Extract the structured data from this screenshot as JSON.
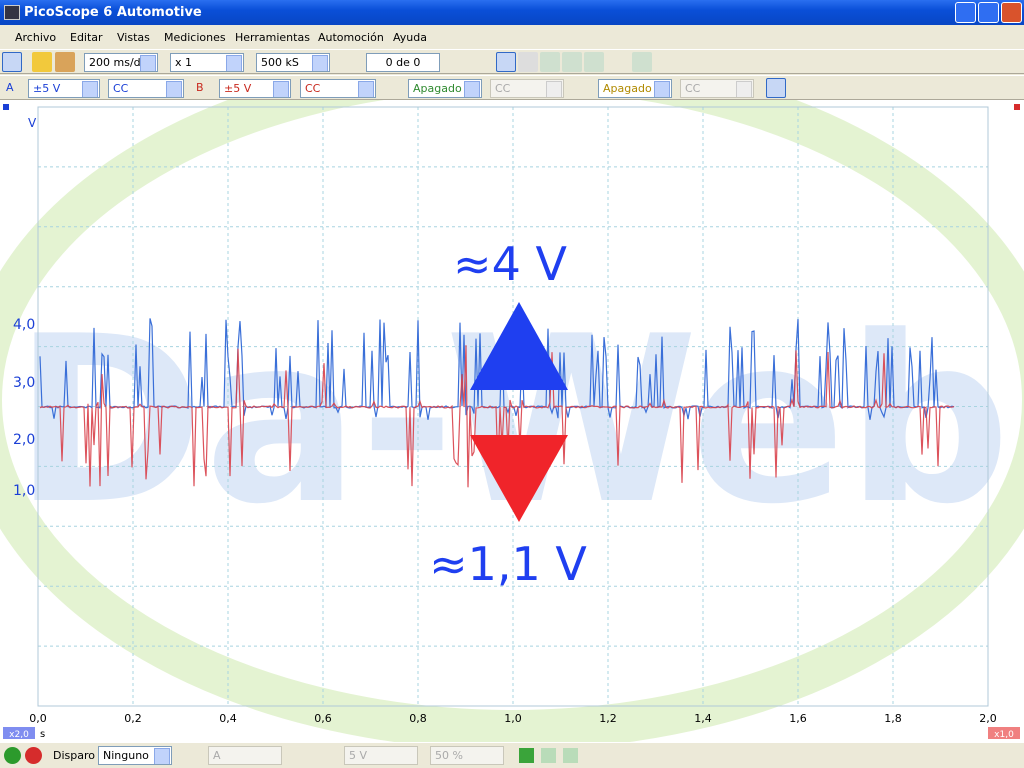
{
  "window": {
    "title": "PicoScope 6 Automotive"
  },
  "menu": [
    "Archivo",
    "Editar",
    "Vistas",
    "Mediciones",
    "Herramientas",
    "Automoción",
    "Ayuda"
  ],
  "toolbar": {
    "timebase": "200 ms/div",
    "zoom": "x 1",
    "samples": "500 kS",
    "buffer": "0 de 0"
  },
  "channels": [
    {
      "name": "A",
      "range": "±5 V",
      "coupling": "CC"
    },
    {
      "name": "B",
      "range": "±5 V",
      "coupling": "CC"
    },
    {
      "state": "Apagado",
      "coupling": "CC"
    },
    {
      "state": "Apagado",
      "coupling": "CC"
    }
  ],
  "plot": {
    "y_unit": "V",
    "y_labels": [
      "4,0",
      "3,0",
      "2,0",
      "1,0"
    ],
    "x_labels": [
      "0,0",
      "0,2",
      "0,4",
      "0,6",
      "0,8",
      "1,0",
      "1,2",
      "1,4",
      "1,6",
      "1,8",
      "2,0"
    ],
    "x_unit": "s",
    "x_zoom": "x2,0",
    "y_zoom": "x1,0",
    "watermark": "Da-Web",
    "annotations": [
      "≈4 V",
      "≈1,1 V"
    ]
  },
  "statusbar": {
    "trigger": "Disparo",
    "mode": "Ninguno",
    "source": "A",
    "level": "5 V",
    "pretrigger": "50 %"
  }
}
